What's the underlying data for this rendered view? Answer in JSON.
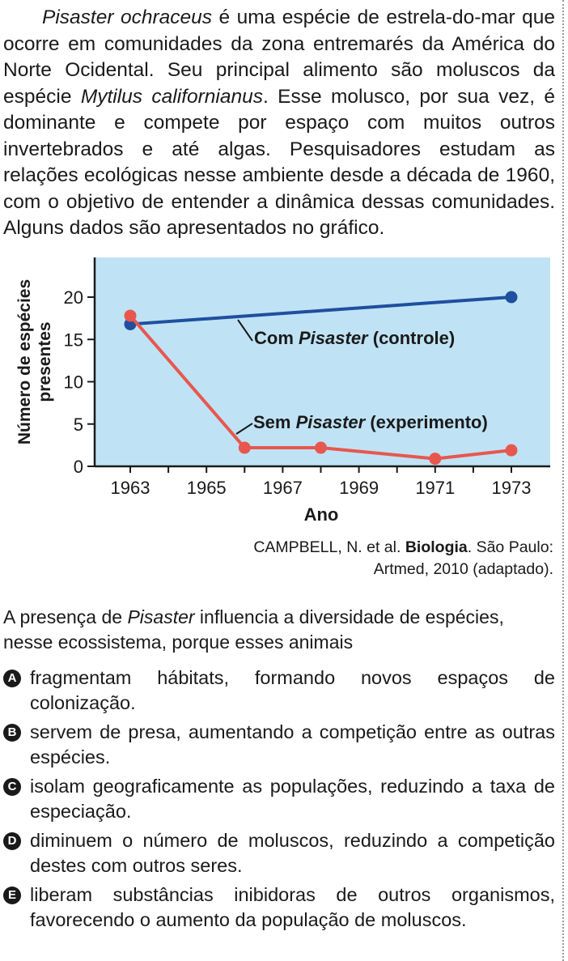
{
  "passage": {
    "sp1": "Pisaster ochraceus",
    "t1": " é uma espécie de estrela-do-mar que ocorre em comunidades da zona entremarés da América do Norte Ocidental. Seu principal alimento são moluscos da espécie ",
    "sp2": "Mytilus californianus",
    "t2": ". Esse molusco, por sua vez, é dominante e compete por espaço com muitos outros invertebrados e até algas. Pesquisadores estudam as relações ecológicas nesse ambiente desde a década de 1960, com o objetivo de entender a dinâmica dessas comunidades. Alguns dados são apresentados no gráfico."
  },
  "chart_data": {
    "type": "line",
    "xlabel": "Ano",
    "ylabel_line1": "Número de espécies",
    "ylabel_line2": "presentes",
    "x_ticks": [
      "1963",
      "1965",
      "1967",
      "1969",
      "1971",
      "1973"
    ],
    "y_ticks": [
      "0",
      "5",
      "10",
      "15",
      "20"
    ],
    "xlim": [
      1962,
      1974
    ],
    "ylim": [
      0,
      24
    ],
    "background_color": "#bfe3f5",
    "series": [
      {
        "label_prefix": "Com ",
        "label_italic": "Pisaster",
        "label_suffix": " (controle)",
        "color": "#1f4f9e",
        "points": [
          {
            "x": 1963,
            "y": 16.8
          },
          {
            "x": 1973,
            "y": 20
          }
        ]
      },
      {
        "label_prefix": "Sem ",
        "label_italic": "Pisaster",
        "label_suffix": " (experimento)",
        "color": "#e8574e",
        "points": [
          {
            "x": 1963,
            "y": 17.8
          },
          {
            "x": 1966,
            "y": 2.2
          },
          {
            "x": 1968,
            "y": 2.2
          },
          {
            "x": 1971,
            "y": 0.9
          },
          {
            "x": 1973,
            "y": 1.9
          }
        ]
      }
    ]
  },
  "source": {
    "line1_a": "CAMPBELL, N. et al. ",
    "line1_b": "Biologia",
    "line1_c": ". São Paulo:",
    "line2": "Artmed, 2010 (adaptado)."
  },
  "question": {
    "t1": "A presença de ",
    "it": "Pisaster",
    "t2": " influencia a diversidade de espécies, nesse ecossistema, porque esses animais"
  },
  "options": [
    {
      "letter": "A",
      "text": "fragmentam hábitats, formando novos espaços de colonização."
    },
    {
      "letter": "B",
      "text": "servem de presa, aumentando a competição entre as outras espécies."
    },
    {
      "letter": "C",
      "text": "isolam geograficamente as populações, reduzindo a taxa de especiação."
    },
    {
      "letter": "D",
      "text": "diminuem o número de moluscos, reduzindo a competição destes com outros seres."
    },
    {
      "letter": "E",
      "text": "liberam substâncias inibidoras de outros organismos, favorecendo o aumento da população de moluscos."
    }
  ]
}
